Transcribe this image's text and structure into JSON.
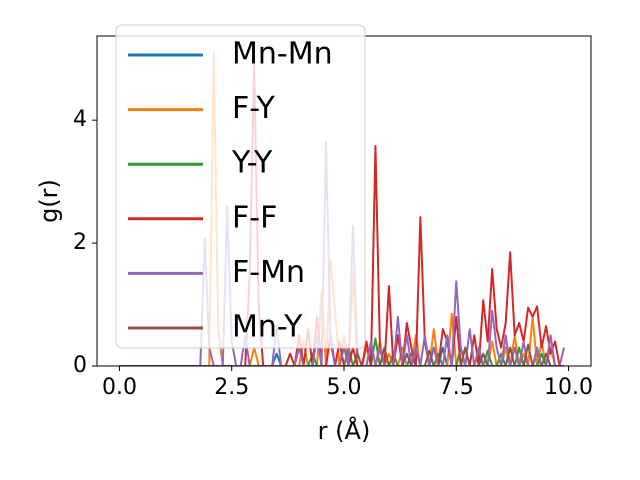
{
  "chart_data": {
    "type": "line",
    "xlabel": "r (Å)",
    "ylabel": "g(r)",
    "x": [
      0,
      0.1,
      0.2,
      0.3,
      0.4,
      0.5,
      0.6,
      0.7,
      0.8,
      0.9,
      1,
      1.1,
      1.2,
      1.3,
      1.4,
      1.5,
      1.6,
      1.7,
      1.8,
      1.9,
      2,
      2.1,
      2.2,
      2.3,
      2.4,
      2.5,
      2.6,
      2.7,
      2.8,
      2.9,
      3,
      3.1,
      3.2,
      3.3,
      3.4,
      3.5,
      3.6,
      3.7,
      3.8,
      3.9,
      4,
      4.1,
      4.2,
      4.3,
      4.4,
      4.5,
      4.6,
      4.7,
      4.8,
      4.9,
      5,
      5.1,
      5.2,
      5.3,
      5.4,
      5.5,
      5.6,
      5.7,
      5.8,
      5.9,
      6,
      6.1,
      6.2,
      6.3,
      6.4,
      6.5,
      6.6,
      6.7,
      6.8,
      6.9,
      7,
      7.1,
      7.2,
      7.3,
      7.4,
      7.5,
      7.6,
      7.7,
      7.8,
      7.9,
      8,
      8.1,
      8.2,
      8.3,
      8.4,
      8.5,
      8.6,
      8.7,
      8.8,
      8.9,
      9,
      9.1,
      9.2,
      9.3,
      9.4,
      9.5,
      9.6,
      9.7,
      9.8,
      9.9
    ],
    "series": [
      {
        "name": "Mn-Mn",
        "color": "#1f77b4",
        "values": [
          0,
          0,
          0,
          0,
          0,
          0,
          0,
          0,
          0,
          0,
          0,
          0,
          0,
          0,
          0,
          0,
          0,
          0,
          0,
          0,
          0,
          0,
          0,
          0,
          0,
          0,
          0,
          0,
          0,
          0,
          0,
          0,
          0,
          0,
          0,
          0.2,
          0,
          0,
          0,
          0,
          0,
          0,
          0,
          0,
          0,
          0,
          0,
          0,
          0,
          0,
          0,
          0,
          0,
          0,
          0,
          0,
          0,
          0,
          0.3,
          0,
          0,
          0,
          0,
          0,
          0,
          0.2,
          0,
          0,
          0,
          0,
          0,
          0,
          0.3,
          0,
          0,
          0,
          0,
          0,
          0,
          0,
          0,
          0,
          0,
          0,
          0,
          0,
          0.3,
          0,
          0,
          0,
          0,
          0,
          0,
          0.2,
          0,
          0,
          0,
          0,
          0,
          0
        ]
      },
      {
        "name": "F-Y",
        "color": "#ff7f0e",
        "values": [
          0,
          0,
          0,
          0,
          0,
          0,
          0,
          0,
          0,
          0,
          0,
          0,
          0,
          0,
          0,
          0,
          0,
          0,
          0,
          0,
          0,
          5.1,
          0.6,
          0,
          0,
          0,
          0,
          0,
          0,
          0,
          0.3,
          0,
          0,
          0,
          0,
          0,
          0,
          0,
          0,
          0,
          0,
          0.4,
          0,
          0,
          0,
          1.2,
          0,
          1.75,
          0.9,
          0,
          0.5,
          0,
          1.5,
          0,
          0,
          0.3,
          0,
          0,
          0.4,
          0,
          0.2,
          0,
          0,
          0.3,
          0,
          0,
          0.5,
          0,
          0,
          0,
          0.6,
          0,
          0,
          0,
          0.85,
          0,
          0.3,
          0,
          0,
          0,
          0.2,
          0,
          0,
          0.4,
          0,
          0,
          0.3,
          0,
          0.5,
          0,
          0.2,
          0,
          0.8,
          0,
          0.4,
          0,
          0.3,
          0,
          0,
          0
        ]
      },
      {
        "name": "Y-Y",
        "color": "#2ca02c",
        "values": [
          0,
          0,
          0,
          0,
          0,
          0,
          0,
          0,
          0,
          0,
          0,
          0,
          0,
          0,
          0,
          0,
          0,
          0,
          0,
          0,
          0,
          0,
          0,
          0,
          0,
          0,
          0,
          0,
          0,
          0,
          0,
          0,
          0,
          0,
          0,
          0,
          0,
          0,
          0,
          0,
          0,
          0,
          0,
          0.2,
          0,
          0,
          0,
          0,
          0,
          0,
          0,
          0.3,
          0,
          0,
          0,
          0,
          0,
          0.45,
          0,
          0,
          0,
          0.2,
          0,
          0,
          0,
          0,
          0.3,
          0,
          0,
          0,
          0,
          0.2,
          0,
          0,
          0,
          0,
          0.3,
          0,
          0,
          0,
          0,
          0,
          0.25,
          0,
          0,
          0.2,
          0,
          0,
          0,
          0.3,
          0,
          0,
          0,
          0,
          0.2,
          0,
          0,
          0,
          0,
          0
        ]
      },
      {
        "name": "F-F",
        "color": "#d62728",
        "values": [
          0,
          0,
          0,
          0,
          0,
          0,
          0,
          0,
          0,
          0,
          0,
          0,
          0,
          0,
          0,
          0,
          0,
          0,
          0,
          0,
          0,
          0,
          0,
          0,
          0,
          0,
          0,
          0,
          0,
          1.5,
          4.9,
          1.0,
          0,
          0,
          0,
          0,
          0,
          0,
          0.2,
          0,
          0.5,
          0,
          0.6,
          0,
          0.8,
          0,
          0,
          0.5,
          0,
          0.4,
          0,
          0,
          0.3,
          0,
          0,
          0.4,
          0,
          3.58,
          0.3,
          0,
          1.3,
          0,
          0.5,
          0,
          0.7,
          0.3,
          0,
          2.42,
          0.4,
          0,
          0.3,
          0,
          0.6,
          0.4,
          0,
          0.8,
          0,
          0.3,
          0,
          0.5,
          0,
          1.07,
          0.4,
          1.58,
          0.6,
          0.3,
          0.7,
          1.85,
          0.5,
          0.7,
          0.4,
          0.95,
          0.8,
          0.97,
          0.3,
          0.65,
          0.2,
          0.4,
          0,
          0
        ]
      },
      {
        "name": "F-Mn",
        "color": "#9467bd",
        "values": [
          0,
          0,
          0,
          0,
          0,
          0,
          0,
          0,
          0,
          0,
          0,
          0,
          0,
          0,
          0,
          0,
          0,
          0,
          0,
          2.07,
          0.3,
          0,
          0,
          0,
          2.6,
          0.4,
          0,
          0,
          0.5,
          0,
          0,
          0,
          0,
          0,
          0,
          0.65,
          0,
          0,
          0,
          0,
          0.3,
          0,
          0,
          0,
          0.5,
          0,
          3.65,
          0.4,
          0,
          0,
          0.3,
          0,
          2.28,
          0.2,
          0,
          0,
          0.4,
          0,
          0.3,
          0,
          0,
          0,
          0.8,
          0,
          0.5,
          0,
          0.3,
          0,
          0.5,
          0,
          0.3,
          0,
          0,
          0.5,
          0,
          1.38,
          0.3,
          0,
          0.6,
          0,
          0.3,
          0,
          0,
          0.9,
          0.3,
          0,
          0.5,
          0,
          0.3,
          0,
          0.4,
          0,
          0,
          0.3,
          0,
          0,
          0.5,
          0,
          0,
          0.3
        ]
      },
      {
        "name": "Mn-Y",
        "color": "#8c564b",
        "values": [
          0,
          0,
          0,
          0,
          0,
          0,
          0,
          0,
          0,
          0,
          0,
          0,
          0,
          0,
          0,
          0,
          0,
          0,
          0,
          0,
          0,
          0,
          0,
          0,
          0,
          0,
          0,
          0,
          0,
          0,
          0,
          0,
          0,
          0,
          0,
          0,
          0,
          0,
          0,
          0,
          0,
          0,
          0,
          0,
          0,
          0,
          0,
          0,
          0,
          0,
          0,
          0,
          0,
          0.2,
          0,
          0,
          0,
          0,
          0,
          0.3,
          0,
          0,
          0,
          0,
          0.2,
          0,
          0,
          0,
          0,
          0.25,
          0,
          0,
          0,
          0,
          0,
          0,
          0,
          0.3,
          0,
          0,
          0,
          0.2,
          0,
          0,
          0,
          0,
          0,
          0.3,
          0,
          0,
          0,
          0.35,
          0,
          0,
          0,
          0.2,
          0,
          0,
          0,
          0
        ]
      }
    ],
    "xlim": [
      -0.5,
      10.5
    ],
    "ylim": [
      0,
      5.37
    ],
    "xticks": [
      {
        "value": 0,
        "label": "0.0"
      },
      2.5,
      {
        "value": 5,
        "label": "5.0"
      },
      7.5,
      {
        "value": 10,
        "label": "10.0"
      }
    ],
    "yticks": [
      0,
      2,
      4
    ],
    "legend": "upper left",
    "grid": false
  }
}
